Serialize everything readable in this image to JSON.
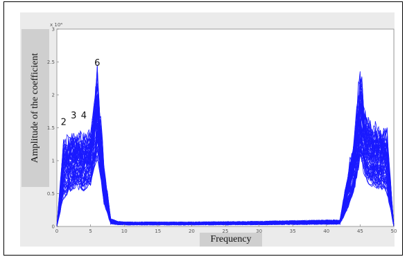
{
  "chart_data": {
    "type": "line",
    "xlabel": "Frequency",
    "ylabel": "Amplitude of the coefficient",
    "exponent_label": "x 10⁴",
    "xlim": [
      0,
      50
    ],
    "ylim": [
      0,
      3
    ],
    "x_ticks": [
      0,
      5,
      10,
      15,
      20,
      25,
      30,
      35,
      40,
      45,
      50
    ],
    "y_ticks": [
      0,
      0.5,
      1,
      1.5,
      2,
      2.5,
      3
    ],
    "peak_labels": [
      {
        "text": "2",
        "x": 1,
        "y": 1.5
      },
      {
        "text": "3",
        "x": 2.5,
        "y": 1.6
      },
      {
        "text": "4",
        "x": 4,
        "y": 1.6
      },
      {
        "text": "6",
        "x": 6,
        "y": 2.4
      }
    ],
    "series_envelope": {
      "x": [
        0,
        1,
        2,
        3,
        4,
        5,
        6,
        7,
        8,
        9,
        10,
        20,
        30,
        40,
        42,
        44,
        45,
        46,
        47,
        48,
        49,
        50
      ],
      "ymax": [
        0,
        1.35,
        1.45,
        1.48,
        1.46,
        1.5,
        2.5,
        1.0,
        0.12,
        0.08,
        0.07,
        0.07,
        0.08,
        0.1,
        0.1,
        1.4,
        2.5,
        1.7,
        1.62,
        1.6,
        1.55,
        0
      ],
      "ymin": [
        0,
        0.1,
        0.2,
        0.25,
        0.2,
        0.3,
        0.5,
        0.1,
        0.0,
        0.0,
        0.0,
        0.0,
        0.0,
        0.0,
        0.0,
        0.1,
        0.4,
        0.3,
        0.2,
        0.2,
        0.1,
        0
      ]
    },
    "line_color": "#1a1aff"
  }
}
